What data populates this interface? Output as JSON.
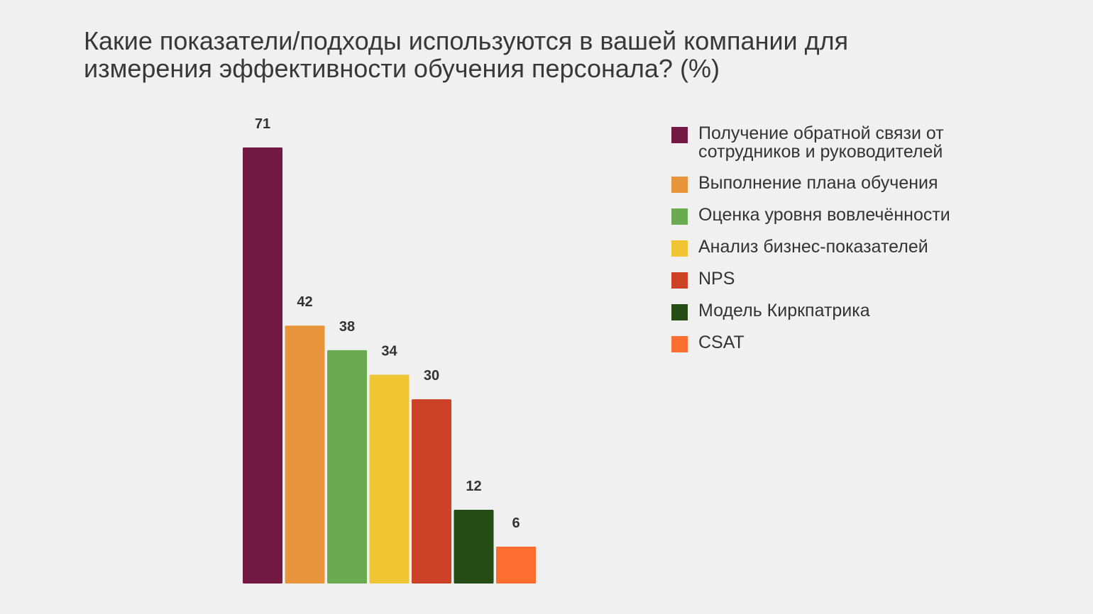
{
  "chart_data": {
    "type": "bar",
    "title": "Какие показатели/подходы используются в вашей компании для измерения эффективности обучения персонала? (%)",
    "categories": [
      "Получение обратной связи от сотрудников и руководителей",
      "Выполнение плана обучения",
      "Оценка уровня вовлечённости",
      "Анализ бизнес-показателей",
      "NPS",
      "Модель Киркпатрика",
      "CSAT"
    ],
    "values": [
      71,
      42,
      38,
      34,
      30,
      12,
      6
    ],
    "data_labels": [
      "71",
      "42",
      "38",
      "34",
      "30",
      "12",
      "6"
    ],
    "colors": [
      "#731943",
      "#e8943b",
      "#6aaa50",
      "#f0c533",
      "#cd4126",
      "#244c14",
      "#fb6e30"
    ],
    "ylim": [
      0,
      71
    ],
    "grid": false,
    "legend_placement": "right"
  }
}
